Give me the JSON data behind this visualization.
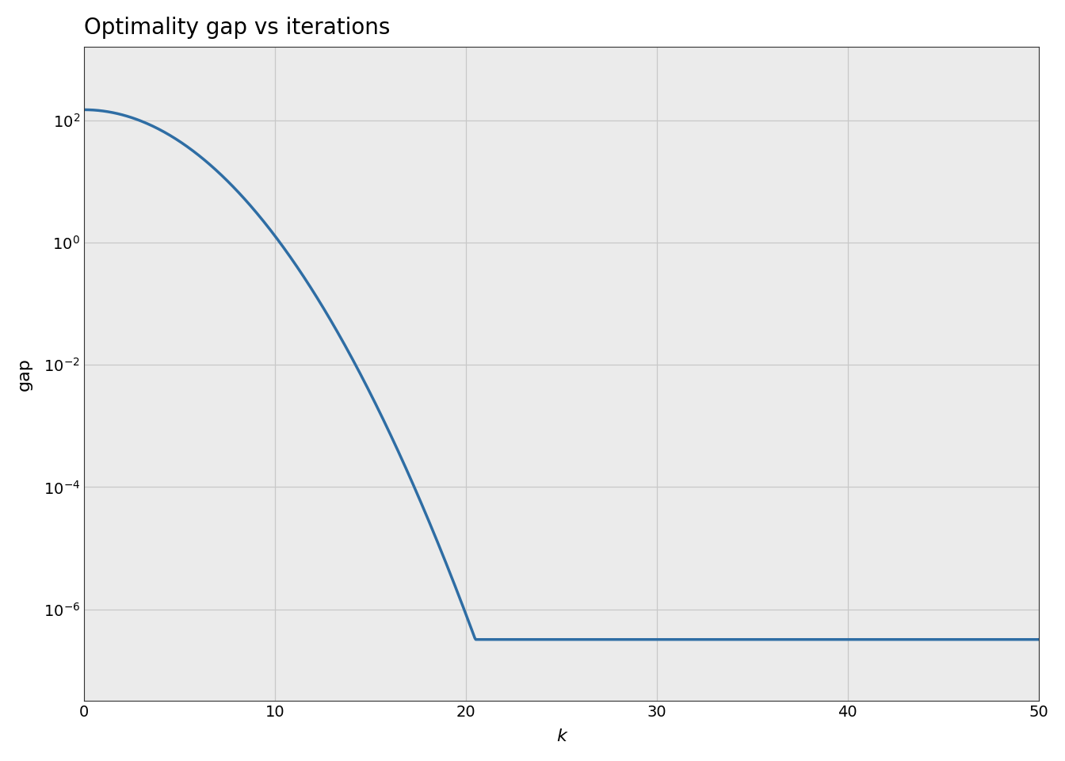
{
  "title": "Optimality gap vs iterations",
  "xlabel": "k",
  "ylabel": "gap",
  "line_color": "#2e6da4",
  "line_width": 2.5,
  "background_color": "#ffffff",
  "plot_bg_color": "#ffffff",
  "grid_color": "#c8c8c8",
  "xlim": [
    0,
    50
  ],
  "ylim_log_min": -7.5,
  "ylim_log_max": 3.2,
  "x_ticks": [
    0,
    10,
    20,
    30,
    40,
    50
  ],
  "title_fontsize": 20,
  "label_fontsize": 16,
  "tick_fontsize": 14,
  "initial_value": 150.0,
  "floor_value": 3.2e-07,
  "knee_iter": 20.5,
  "decay_power": 2.0
}
